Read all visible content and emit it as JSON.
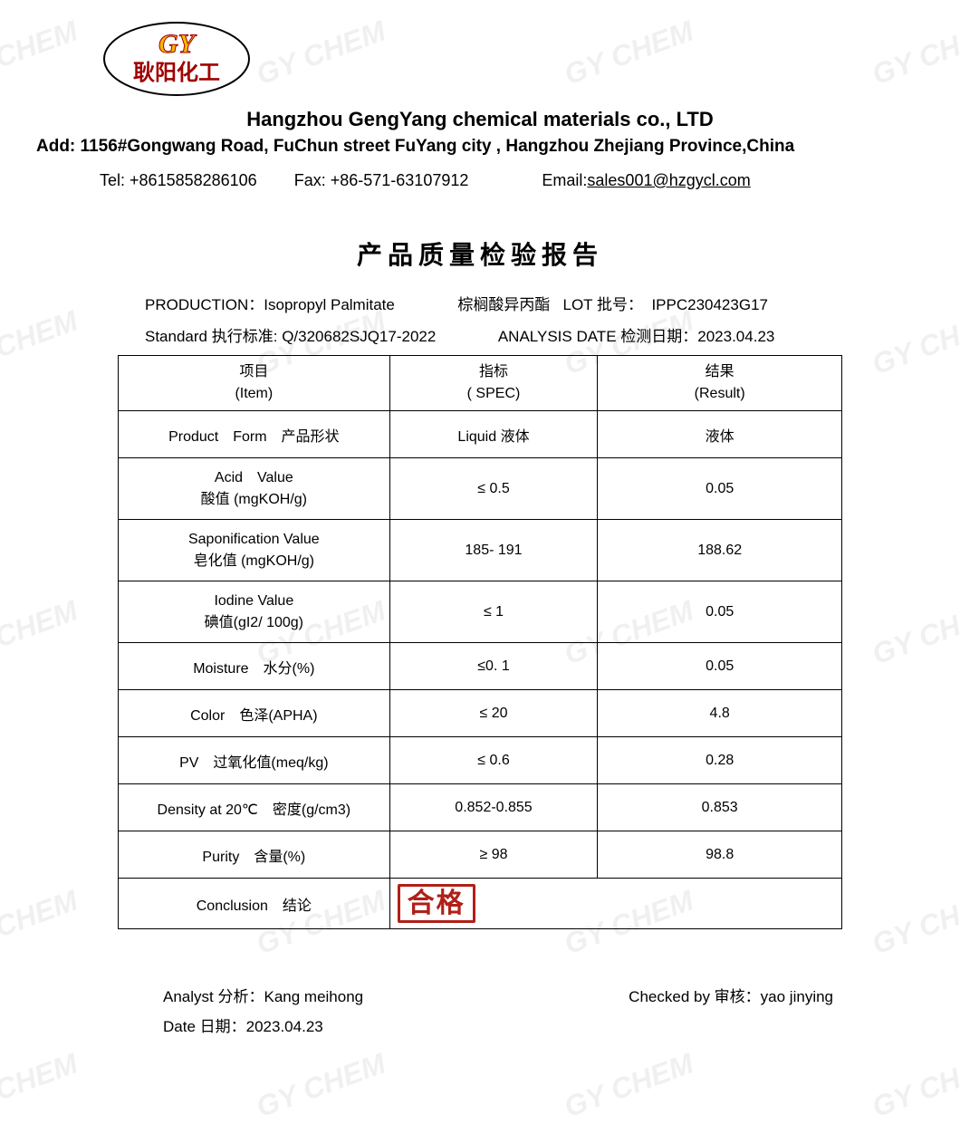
{
  "watermark_text": "GY CHEM",
  "watermark_color": "rgba(0,0,0,0.06)",
  "logo": {
    "initials": "GY",
    "chinese": "耿阳化工",
    "ellipse_stroke": "#000000",
    "initials_fill": "#f5b800",
    "initials_stroke": "#a00000",
    "chinese_fill": "#a00000"
  },
  "header": {
    "company": "Hangzhou GengYang chemical materials co., LTD",
    "address_label": "Add:",
    "address": "1156#Gongwang Road, FuChun street FuYang city , Hangzhou Zhejiang Province,China",
    "tel_label": "Tel:",
    "tel": "+8615858286106",
    "fax_label": "Fax:",
    "fax": "+86-571-63107912",
    "email_label": "Email:",
    "email": "sales001@hzgycl.com"
  },
  "report_title": "产品质量检验报告",
  "meta": {
    "production_label": "PRODUCTION：",
    "production_value": "Isopropyl Palmitate",
    "production_cn": "棕榈酸异丙酯",
    "lot_label": "LOT 批号：",
    "lot_value": "IPPC230423G17",
    "standard_label": "Standard 执行标准:",
    "standard_value": "Q/320682SJQ17-2022",
    "date_label": "ANALYSIS DATE 检测日期：",
    "date_value": "2023.04.23"
  },
  "table": {
    "headers": {
      "item_cn": "项目",
      "item_en": "(Item)",
      "spec_cn": "指标",
      "spec_en": "( SPEC)",
      "result_cn": "结果",
      "result_en": "(Result)"
    },
    "rows": [
      {
        "item_l1": "Product　Form　产品形状",
        "item_l2": "",
        "spec": "Liquid  液体",
        "result": "液体"
      },
      {
        "item_l1": "Acid　Value",
        "item_l2": "酸值 (mgKOH/g)",
        "spec": "≤ 0.5",
        "result": "0.05"
      },
      {
        "item_l1": "Saponification Value",
        "item_l2": "皂化值 (mgKOH/g)",
        "spec": "185- 191",
        "result": "188.62"
      },
      {
        "item_l1": "Iodine Value",
        "item_l2": "碘值(gI2/ 100g)",
        "spec": "≤ 1",
        "result": "0.05"
      },
      {
        "item_l1": "Moisture　水分(%)",
        "item_l2": "",
        "spec": "≤0. 1",
        "result": "0.05"
      },
      {
        "item_l1": "Color　色泽(APHA)",
        "item_l2": "",
        "spec": "≤ 20",
        "result": "4.8"
      },
      {
        "item_l1": "PV　过氧化值(meq/kg)",
        "item_l2": "",
        "spec": "≤ 0.6",
        "result": "0.28"
      },
      {
        "item_l1": "Density at 20℃　密度(g/cm3)",
        "item_l2": "",
        "spec": "0.852-0.855",
        "result": "0.853"
      },
      {
        "item_l1": "Purity　含量(%)",
        "item_l2": "",
        "spec": "≥ 98",
        "result": "98.8"
      }
    ],
    "conclusion_label": "Conclusion　结论",
    "conclusion_stamp": "合格"
  },
  "footer": {
    "analyst_label": "Analyst 分析：",
    "analyst_value": "Kang meihong",
    "date_label": "Date 日期：",
    "date_value": "2023.04.23",
    "checked_label": "Checked by 审核：",
    "checked_value": "yao jinying"
  }
}
